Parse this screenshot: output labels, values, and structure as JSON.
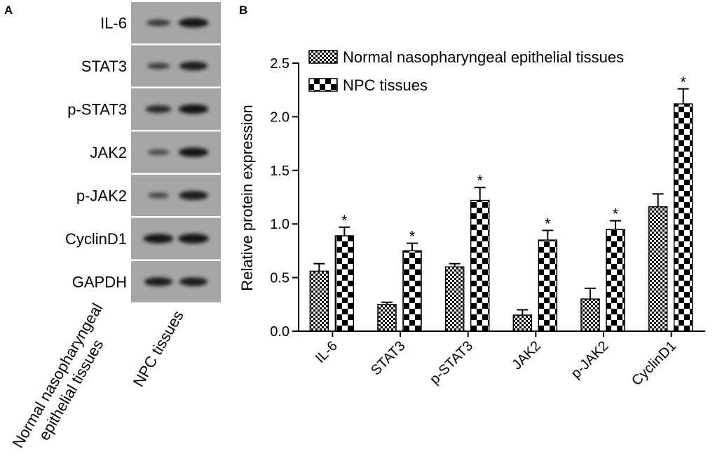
{
  "panel_a": {
    "letter": "A",
    "proteins": [
      "IL-6",
      "STAT3",
      "p-STAT3",
      "JAK2",
      "p-JAK2",
      "CyclinD1",
      "GAPDH"
    ],
    "lanes": [
      {
        "line1": "Normal nasopharyngeal",
        "line2": "epithelial tissues"
      },
      {
        "line1": "NPC tissues",
        "line2": ""
      }
    ],
    "band_intensity": {
      "lane1": [
        0.45,
        0.4,
        0.6,
        0.3,
        0.3,
        0.85,
        0.75
      ],
      "lane2": [
        0.85,
        0.75,
        0.85,
        0.85,
        0.8,
        0.9,
        0.75
      ]
    }
  },
  "panel_b": {
    "letter": "B",
    "significance_marker": "*"
  },
  "chart_data": {
    "type": "bar",
    "title": "",
    "xlabel": "",
    "ylabel": "Relative protein expression",
    "categories": [
      "IL-6",
      "STAT3",
      "p-STAT3",
      "JAK2",
      "p-JAK2",
      "CyclinD1"
    ],
    "series": [
      {
        "name": "Normal nasopharyngeal epithelial tissues",
        "values": [
          0.56,
          0.25,
          0.6,
          0.15,
          0.3,
          1.16
        ],
        "errors": [
          0.07,
          0.02,
          0.03,
          0.05,
          0.1,
          0.12
        ],
        "pattern": "small-check"
      },
      {
        "name": "NPC tissues",
        "values": [
          0.89,
          0.75,
          1.22,
          0.85,
          0.95,
          2.12
        ],
        "errors": [
          0.08,
          0.07,
          0.12,
          0.09,
          0.08,
          0.14
        ],
        "pattern": "large-check"
      }
    ],
    "significant": [
      true,
      true,
      true,
      true,
      true,
      true
    ],
    "ylim": [
      0,
      2.5
    ],
    "yticks": [
      "0.0",
      "0.5",
      "1.0",
      "1.5",
      "2.0",
      "2.5"
    ],
    "legend_position": "top-left",
    "grid": false
  }
}
